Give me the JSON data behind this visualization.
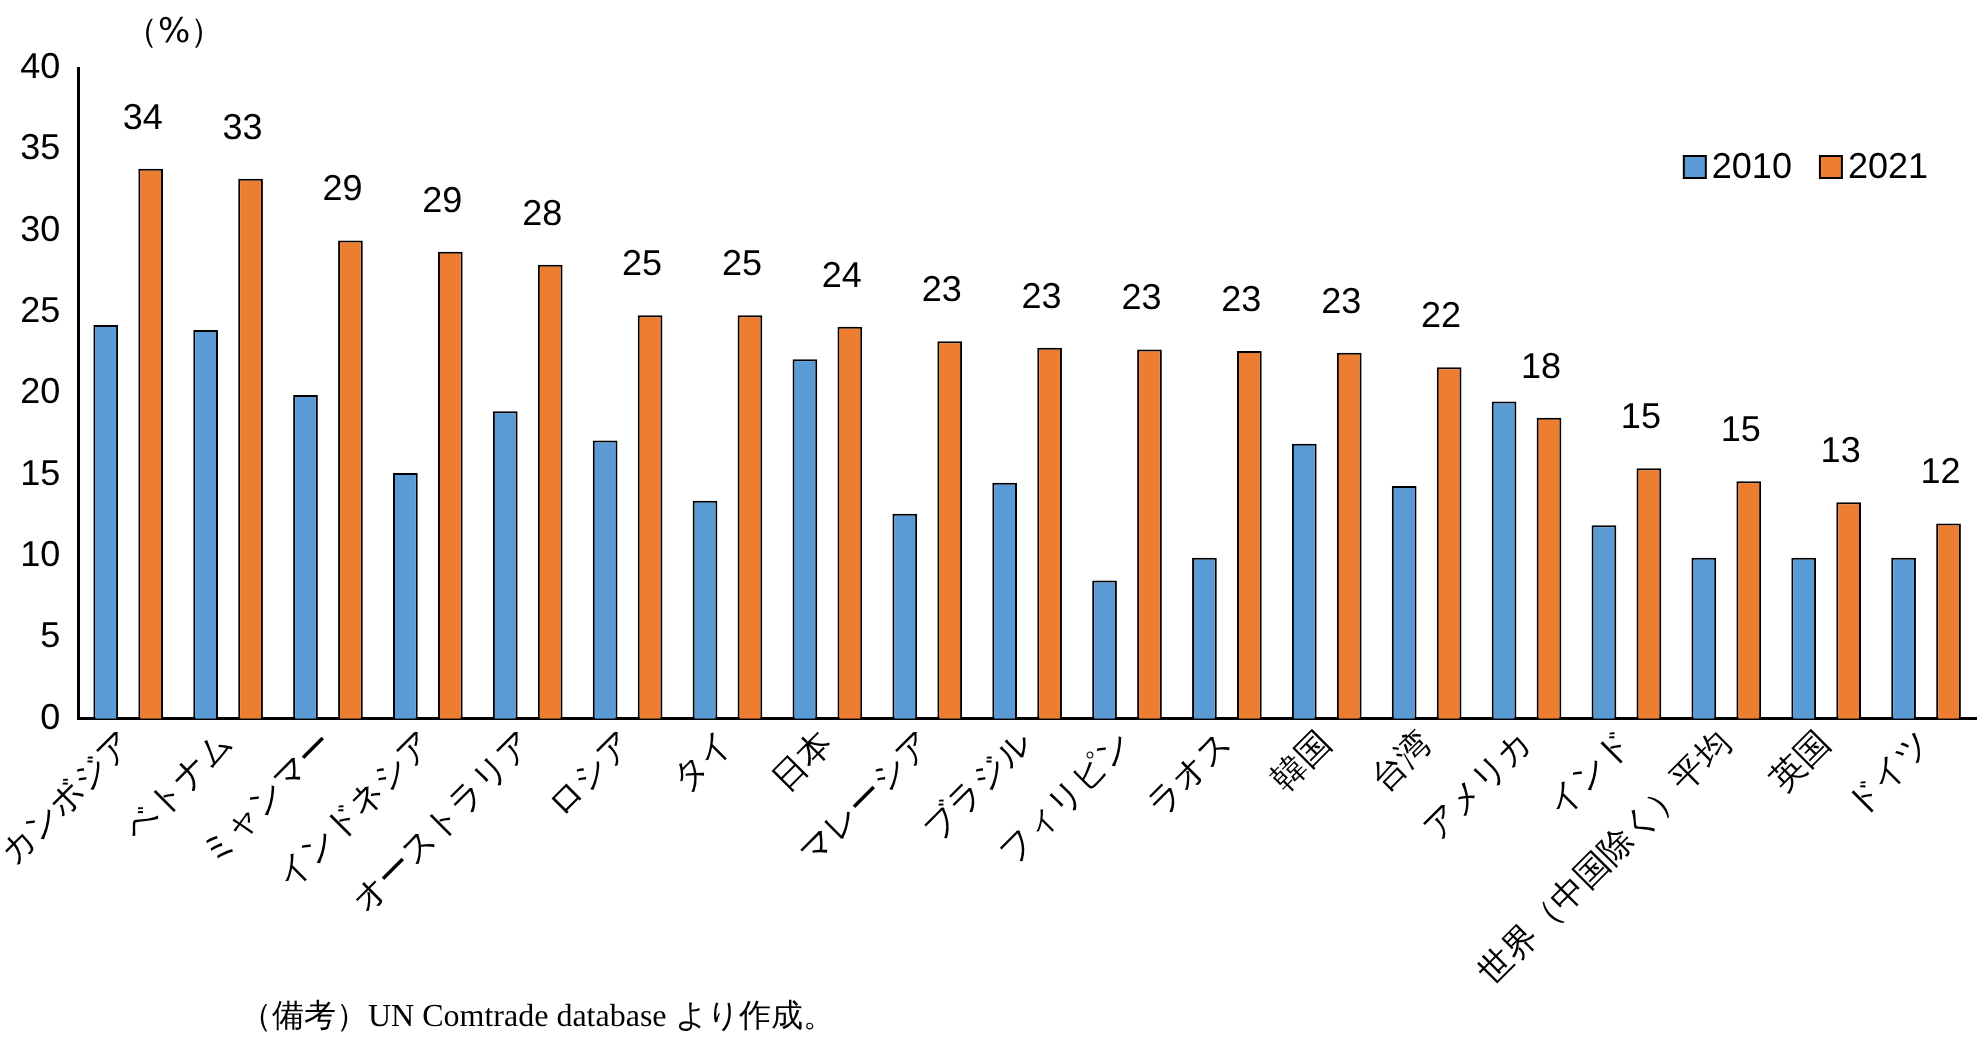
{
  "chart_data": {
    "type": "bar",
    "ylabel": "（%）",
    "annotations": [
      "（備考）UN Comtrade database より作成。"
    ],
    "categories": [
      "カンボジア",
      "ベトナム",
      "ミャンマー",
      "インドネシア",
      "オーストラリア",
      "ロシア",
      "タイ",
      "日本",
      "マレーシア",
      "ブラジル",
      "フィリピン",
      "ラオス",
      "韓国",
      "台湾",
      "アメリカ",
      "インド",
      "世界（中国除く）平均",
      "英国",
      "ドイツ"
    ],
    "series": [
      {
        "name": "2010",
        "color": "#5b9bd5",
        "values": [
          24.2,
          23.9,
          19.9,
          15.1,
          18.9,
          17.1,
          13.4,
          22.1,
          12.6,
          14.5,
          8.5,
          9.9,
          16.9,
          14.3,
          19.5,
          11.9,
          9.9,
          9.9,
          9.9
        ]
      },
      {
        "name": "2021",
        "color": "#ed7d31",
        "values": [
          33.8,
          33.2,
          29.4,
          28.7,
          27.9,
          24.8,
          24.8,
          24.1,
          23.2,
          22.8,
          22.7,
          22.6,
          22.5,
          21.6,
          18.5,
          15.4,
          14.6,
          13.3,
          12.0
        ],
        "value_labels": [
          "34",
          "33",
          "29",
          "29",
          "28",
          "25",
          "25",
          "24",
          "23",
          "23",
          "23",
          "23",
          "23",
          "22",
          "18",
          "15",
          "15",
          "13",
          "12"
        ]
      }
    ],
    "ylim": [
      0,
      40
    ],
    "yticks": [
      0,
      5,
      10,
      15,
      20,
      25,
      30,
      35,
      40
    ],
    "grid": false,
    "legend": "top right"
  }
}
